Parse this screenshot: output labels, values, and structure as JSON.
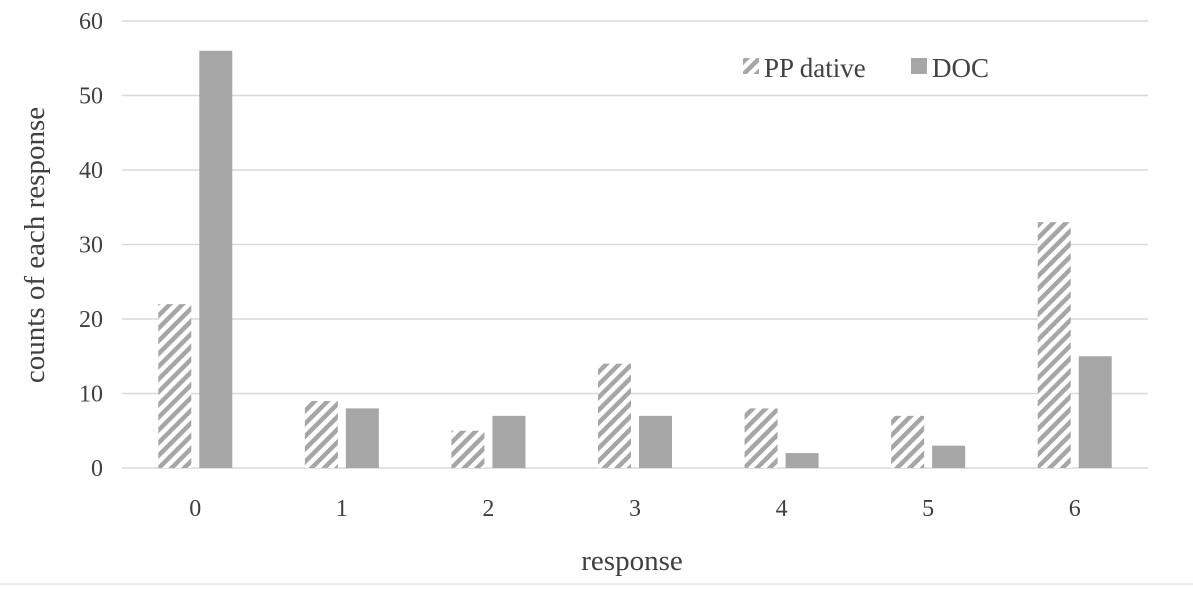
{
  "chart_data": {
    "type": "bar",
    "categories": [
      "0",
      "1",
      "2",
      "3",
      "4",
      "5",
      "6"
    ],
    "series": [
      {
        "name": "PP dative",
        "values": [
          22,
          9,
          5,
          14,
          8,
          7,
          33
        ],
        "style": "hatched",
        "color": "#a6a6a6"
      },
      {
        "name": "DOC",
        "values": [
          56,
          8,
          7,
          7,
          2,
          3,
          15
        ],
        "style": "solid",
        "color": "#a6a6a6"
      }
    ],
    "xlabel": "response",
    "ylabel": "counts of each response",
    "ylim": [
      0,
      60
    ],
    "yticks": [
      "0",
      "10",
      "20",
      "30",
      "40",
      "50",
      "60"
    ],
    "grid": true,
    "legend_position": "top-right",
    "colors": {
      "bar": "#a6a6a6",
      "grid": "#d9d9d9",
      "text": "#404040"
    }
  }
}
